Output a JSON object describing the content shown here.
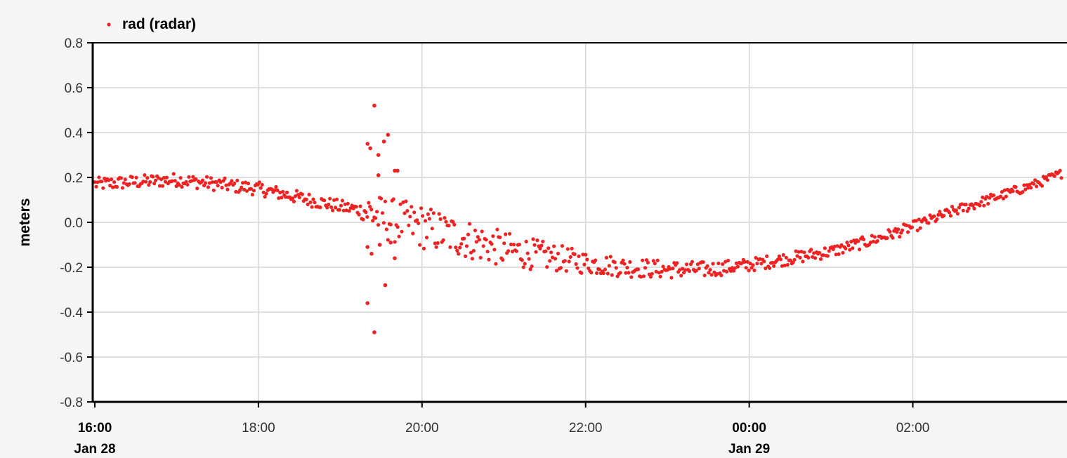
{
  "chart_data": {
    "type": "scatter",
    "title": "",
    "xlabel": "",
    "ylabel": "meters",
    "ylim": [
      -0.8,
      0.8
    ],
    "y_ticks": [
      "0.8",
      "0.6",
      "0.4",
      "0.2",
      "0.0",
      "-0.2",
      "-0.4",
      "-0.6",
      "-0.8"
    ],
    "xlim": [
      "Jan 28 16:00",
      "Jan 29 03:50"
    ],
    "x_ticks": [
      {
        "label": "16:00",
        "sublabel": "Jan 28",
        "bold": true
      },
      {
        "label": "18:00",
        "sublabel": "",
        "bold": false
      },
      {
        "label": "20:00",
        "sublabel": "",
        "bold": false
      },
      {
        "label": "22:00",
        "sublabel": "",
        "bold": false
      },
      {
        "label": "00:00",
        "sublabel": "Jan 29",
        "bold": true
      },
      {
        "label": "02:00",
        "sublabel": "",
        "bold": false
      }
    ],
    "grid": true,
    "legend": {
      "position": "top-left",
      "entries": [
        "rad (radar)"
      ]
    },
    "series": [
      {
        "name": "rad (radar)",
        "color": "#ee2222",
        "marker": "dot",
        "trend": [
          [
            "Jan 28 16:00",
            0.17
          ],
          [
            "Jan 28 16:30",
            0.18
          ],
          [
            "Jan 28 17:00",
            0.19
          ],
          [
            "Jan 28 17:30",
            0.17
          ],
          [
            "Jan 28 18:00",
            0.15
          ],
          [
            "Jan 28 18:30",
            0.11
          ],
          [
            "Jan 28 19:00",
            0.07
          ],
          [
            "Jan 28 19:20",
            0.05
          ],
          [
            "Jan 28 19:30",
            0.02
          ],
          [
            "Jan 28 20:00",
            -0.02
          ],
          [
            "Jan 28 20:30",
            -0.07
          ],
          [
            "Jan 28 21:00",
            -0.12
          ],
          [
            "Jan 28 21:30",
            -0.15
          ],
          [
            "Jan 28 22:00",
            -0.18
          ],
          [
            "Jan 28 22:30",
            -0.2
          ],
          [
            "Jan 28 23:00",
            -0.21
          ],
          [
            "Jan 28 23:30",
            -0.21
          ],
          [
            "Jan 29 00:00",
            -0.19
          ],
          [
            "Jan 29 00:30",
            -0.16
          ],
          [
            "Jan 29 01:00",
            -0.13
          ],
          [
            "Jan 29 01:30",
            -0.08
          ],
          [
            "Jan 29 02:00",
            -0.02
          ],
          [
            "Jan 29 02:30",
            0.05
          ],
          [
            "Jan 29 03:00",
            0.11
          ],
          [
            "Jan 29 03:30",
            0.17
          ],
          [
            "Jan 29 03:50",
            0.22
          ]
        ],
        "spread": [
          [
            "Jan 28 16:00",
            0.03
          ],
          [
            "Jan 28 19:15",
            0.03
          ],
          [
            "Jan 28 19:20",
            0.1
          ],
          [
            "Jan 28 20:00",
            0.1
          ],
          [
            "Jan 28 21:00",
            0.08
          ],
          [
            "Jan 28 22:00",
            0.05
          ],
          [
            "Jan 28 23:00",
            0.04
          ],
          [
            "Jan 29 00:00",
            0.03
          ],
          [
            "Jan 29 03:50",
            0.02
          ]
        ],
        "outliers": [
          [
            "Jan 28 19:20",
            0.35
          ],
          [
            "Jan 28 19:22",
            0.33
          ],
          [
            "Jan 28 19:25",
            0.52
          ],
          [
            "Jan 28 19:28",
            0.3
          ],
          [
            "Jan 28 19:32",
            0.36
          ],
          [
            "Jan 28 19:35",
            0.39
          ],
          [
            "Jan 28 19:40",
            0.23
          ],
          [
            "Jan 28 19:42",
            0.23
          ],
          [
            "Jan 28 19:28",
            0.21
          ],
          [
            "Jan 28 19:20",
            -0.36
          ],
          [
            "Jan 28 19:25",
            -0.49
          ],
          [
            "Jan 28 19:33",
            -0.28
          ],
          [
            "Jan 28 19:20",
            -0.11
          ],
          [
            "Jan 28 19:23",
            -0.14
          ],
          [
            "Jan 28 19:29",
            -0.1
          ],
          [
            "Jan 28 19:37",
            -0.09
          ],
          [
            "Jan 28 19:40",
            -0.16
          ]
        ]
      }
    ]
  }
}
